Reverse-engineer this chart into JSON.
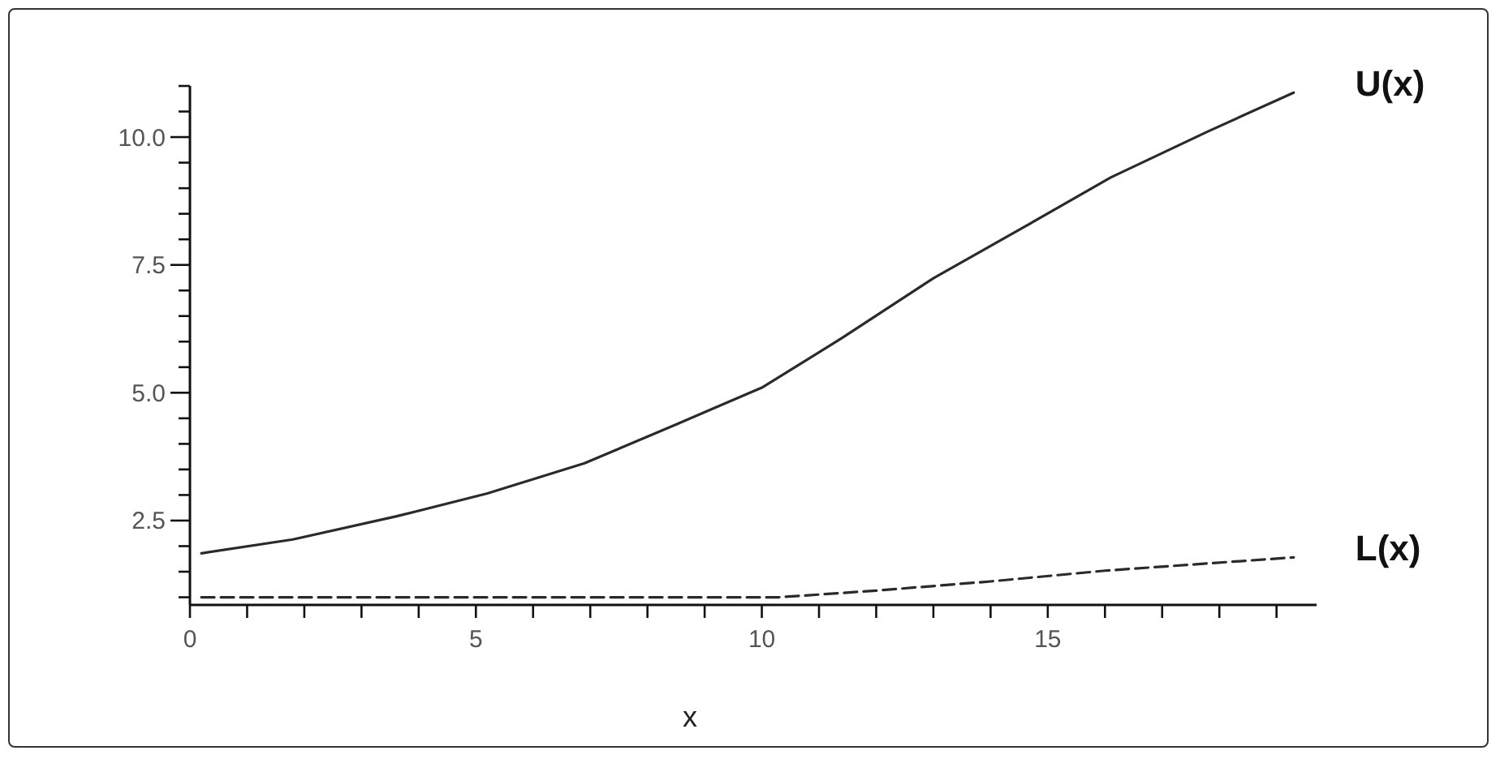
{
  "chart_data": {
    "type": "line",
    "xlabel": "x",
    "xlim": [
      0,
      19.7
    ],
    "xticks": [
      0,
      {
        "value": 1,
        "label": null
      },
      {
        "value": 2,
        "label": null
      },
      {
        "value": 3,
        "label": null
      },
      {
        "value": 4,
        "label": null
      },
      5,
      {
        "value": 6,
        "label": null
      },
      {
        "value": 7,
        "label": null
      },
      {
        "value": 8,
        "label": null
      },
      {
        "value": 9,
        "label": null
      },
      10,
      {
        "value": 11,
        "label": null
      },
      {
        "value": 12,
        "label": null
      },
      {
        "value": 13,
        "label": null
      },
      {
        "value": 14,
        "label": null
      },
      15,
      {
        "value": 16,
        "label": null
      },
      {
        "value": 17,
        "label": null
      },
      {
        "value": 18,
        "label": null
      },
      {
        "value": 19,
        "label": null
      }
    ],
    "ylim": [
      0.85,
      11
    ],
    "yticks": [
      {
        "value": 1,
        "label": null
      },
      {
        "value": 1.5,
        "label": null
      },
      {
        "value": 2,
        "label": null
      },
      2.5,
      {
        "value": 3,
        "label": null
      },
      {
        "value": 3.5,
        "label": null
      },
      {
        "value": 4,
        "label": null
      },
      {
        "value": 4.5,
        "label": null
      },
      {
        "value": 5,
        "label": "5.0"
      },
      {
        "value": 5.5,
        "label": null
      },
      {
        "value": 6,
        "label": null
      },
      {
        "value": 6.5,
        "label": null
      },
      {
        "value": 7,
        "label": null
      },
      7.5,
      {
        "value": 8,
        "label": null
      },
      {
        "value": 8.5,
        "label": null
      },
      {
        "value": 9,
        "label": null
      },
      {
        "value": 9.5,
        "label": null
      },
      {
        "value": 10,
        "label": "10.0"
      },
      {
        "value": 10.5,
        "label": null
      },
      {
        "value": 11,
        "label": null
      }
    ],
    "grid": false,
    "legend": false,
    "marker": "none",
    "line_style": "solid",
    "series": [
      {
        "name": "U(x)",
        "color": "#2a2a2a",
        "x": [
          0.2,
          1.8,
          3.6,
          5.2,
          6.9,
          8.5,
          10,
          11.4,
          13,
          14.6,
          16.1,
          17.8,
          19.3
        ],
        "values": [
          1.86,
          2.13,
          2.58,
          3.03,
          3.62,
          4.38,
          5.1,
          6.07,
          7.24,
          8.25,
          9.21,
          10.11,
          10.87
        ]
      },
      {
        "name": "L(x)",
        "color": "#2a2a2a",
        "line_style": "dashed",
        "x": [
          0.2,
          2,
          4,
          6,
          8,
          10.3,
          12,
          14,
          16,
          19.3
        ],
        "values": [
          1,
          1,
          1,
          1,
          1,
          1,
          1.13,
          1.31,
          1.52,
          1.78
        ]
      }
    ]
  }
}
